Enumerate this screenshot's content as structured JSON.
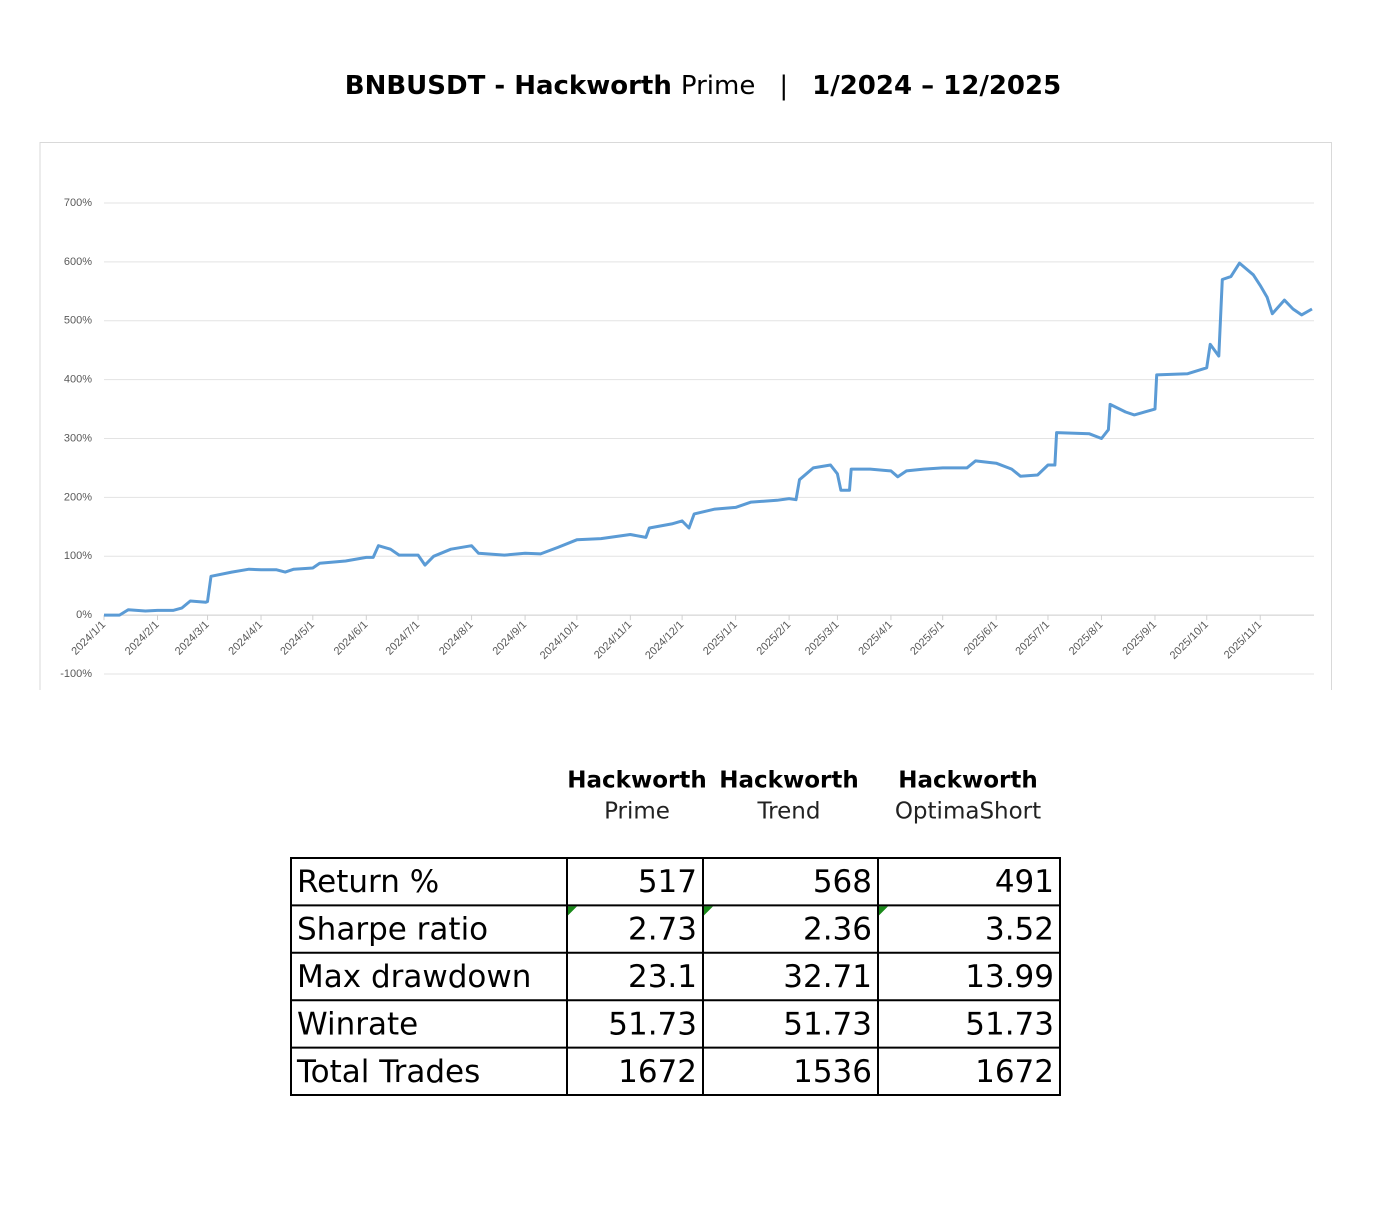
{
  "title": {
    "bold": "BNBUSDT - Hackworth",
    "normal": "Prime",
    "separator": "|",
    "period": "1/2024 – 12/2025"
  },
  "chart_data": {
    "type": "line",
    "color": "#5b9bd5",
    "grid": true,
    "ylim": [
      -100,
      700
    ],
    "yticks": [
      {
        "value": -100,
        "label": "-100%"
      },
      {
        "value": 0,
        "label": "0%"
      },
      {
        "value": 100,
        "label": "100%"
      },
      {
        "value": 200,
        "label": "200%"
      },
      {
        "value": 300,
        "label": "300%"
      },
      {
        "value": 400,
        "label": "400%"
      },
      {
        "value": 500,
        "label": "500%"
      },
      {
        "value": 600,
        "label": "600%"
      },
      {
        "value": 700,
        "label": "700%"
      }
    ],
    "xlim": [
      "2024/1/1",
      "2025/12/1"
    ],
    "xticks": [
      "2024/1/1",
      "2024/2/1",
      "2024/3/1",
      "2024/4/1",
      "2024/5/1",
      "2024/6/1",
      "2024/7/1",
      "2024/8/1",
      "2024/9/1",
      "2024/10/1",
      "2024/11/1",
      "2024/12/1",
      "2025/1/1",
      "2025/2/1",
      "2025/3/1",
      "2025/4/1",
      "2025/5/1",
      "2025/6/1",
      "2025/7/1",
      "2025/8/1",
      "2025/9/1",
      "2025/10/1",
      "2025/11/1"
    ],
    "x": [
      "2024/1/1",
      "2024/1/10",
      "2024/1/15",
      "2024/1/25",
      "2024/2/1",
      "2024/2/10",
      "2024/2/15",
      "2024/2/20",
      "2024/2/29",
      "2024/3/1",
      "2024/3/3",
      "2024/3/15",
      "2024/3/25",
      "2024/4/1",
      "2024/4/10",
      "2024/4/15",
      "2024/4/20",
      "2024/5/1",
      "2024/5/5",
      "2024/5/20",
      "2024/6/1",
      "2024/6/5",
      "2024/6/8",
      "2024/6/15",
      "2024/6/20",
      "2024/7/1",
      "2024/7/5",
      "2024/7/10",
      "2024/7/20",
      "2024/8/1",
      "2024/8/5",
      "2024/8/20",
      "2024/9/1",
      "2024/9/10",
      "2024/9/20",
      "2024/10/1",
      "2024/10/15",
      "2024/11/1",
      "2024/11/10",
      "2024/11/12",
      "2024/11/25",
      "2024/12/1",
      "2024/12/5",
      "2024/12/8",
      "2024/12/20",
      "2025/1/1",
      "2025/1/10",
      "2025/1/25",
      "2025/2/1",
      "2025/2/5",
      "2025/2/7",
      "2025/2/15",
      "2025/2/25",
      "2025/3/1",
      "2025/3/3",
      "2025/3/8",
      "2025/3/9",
      "2025/3/20",
      "2025/4/1",
      "2025/4/5",
      "2025/4/10",
      "2025/4/20",
      "2025/5/1",
      "2025/5/15",
      "2025/5/20",
      "2025/6/1",
      "2025/6/10",
      "2025/6/15",
      "2025/6/25",
      "2025/7/1",
      "2025/7/5",
      "2025/7/6",
      "2025/7/25",
      "2025/8/1",
      "2025/8/5",
      "2025/8/6",
      "2025/8/15",
      "2025/8/20",
      "2025/9/1",
      "2025/9/2",
      "2025/9/20",
      "2025/10/1",
      "2025/10/3",
      "2025/10/8",
      "2025/10/10",
      "2025/10/15",
      "2025/10/20",
      "2025/10/28",
      "2025/11/1",
      "2025/11/5",
      "2025/11/8",
      "2025/11/15",
      "2025/11/20",
      "2025/11/25",
      "2025/12/1"
    ],
    "values": [
      0,
      0,
      9,
      7,
      8,
      8,
      12,
      24,
      22,
      23,
      66,
      73,
      78,
      77,
      77,
      73,
      78,
      80,
      88,
      92,
      98,
      98,
      118,
      112,
      102,
      102,
      85,
      100,
      112,
      118,
      105,
      102,
      105,
      104,
      115,
      128,
      130,
      137,
      132,
      148,
      155,
      160,
      148,
      172,
      180,
      183,
      192,
      195,
      198,
      196,
      230,
      250,
      255,
      240,
      212,
      212,
      248,
      248,
      245,
      235,
      245,
      248,
      250,
      250,
      262,
      258,
      248,
      236,
      238,
      255,
      255,
      310,
      308,
      300,
      315,
      358,
      345,
      340,
      350,
      408,
      410,
      420,
      460,
      440,
      570,
      575,
      598,
      578,
      560,
      540,
      512,
      535,
      520,
      510,
      520
    ]
  },
  "table": {
    "columns": [
      {
        "name": "Hackworth",
        "variant": "Prime"
      },
      {
        "name": "Hackworth",
        "variant": "Trend"
      },
      {
        "name": "Hackworth",
        "variant": "OptimaShort"
      }
    ],
    "rows": [
      [
        "Return %",
        517,
        568,
        491
      ],
      [
        "Sharpe ratio",
        2.73,
        2.36,
        3.52
      ],
      [
        "Max drawdown",
        23.1,
        32.71,
        13.99
      ],
      [
        "Winrate",
        51.73,
        51.73,
        51.73
      ],
      [
        "Total Trades",
        1672,
        1536,
        1672
      ]
    ]
  }
}
